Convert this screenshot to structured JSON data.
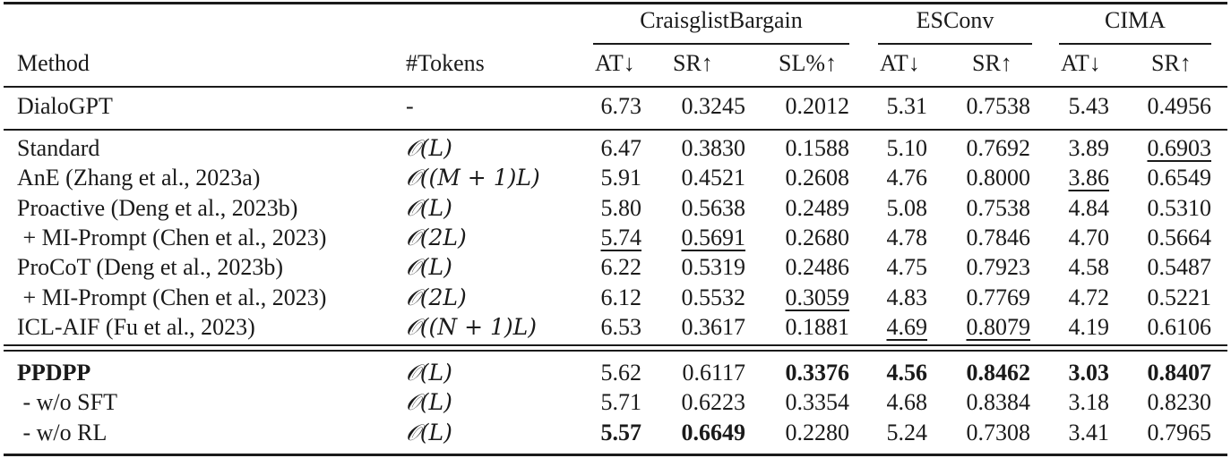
{
  "table": {
    "group_headers": [
      {
        "label": "CraisglistBargain",
        "span": [
          "AT↓",
          "SR↑",
          "SL%↑"
        ]
      },
      {
        "label": "ESConv",
        "span": [
          "AT↓",
          "SR↑"
        ]
      },
      {
        "label": "CIMA",
        "span": [
          "AT↓",
          "SR↑"
        ]
      }
    ],
    "columns": [
      "Method",
      "#Tokens",
      "AT↓",
      "SR↑",
      "SL%↑",
      "AT↓",
      "SR↑",
      "AT↓",
      "SR↑"
    ],
    "sections": [
      {
        "rows": [
          {
            "method": "DialoGPT",
            "tokens": "-",
            "values": [
              "6.73",
              "0.3245",
              "0.2012",
              "5.31",
              "0.7538",
              "5.43",
              "0.4956"
            ],
            "bold": [],
            "underline": []
          }
        ]
      },
      {
        "rows": [
          {
            "method": "Standard",
            "tokens": "𝒪(L)",
            "values": [
              "6.47",
              "0.3830",
              "0.1588",
              "5.10",
              "0.7692",
              "3.89",
              "0.6903"
            ],
            "bold": [],
            "underline": [
              6
            ]
          },
          {
            "method": "AnE (Zhang et al., 2023a)",
            "tokens": "𝒪((M + 1)L)",
            "values": [
              "5.91",
              "0.4521",
              "0.2608",
              "4.76",
              "0.8000",
              "3.86",
              "0.6549"
            ],
            "bold": [],
            "underline": [
              5
            ]
          },
          {
            "method": "Proactive (Deng et al., 2023b)",
            "tokens": "𝒪(L)",
            "values": [
              "5.80",
              "0.5638",
              "0.2489",
              "5.08",
              "0.7538",
              "4.84",
              "0.5310"
            ],
            "bold": [],
            "underline": []
          },
          {
            "method": " + MI-Prompt (Chen et al., 2023)",
            "tokens": "𝒪(2L)",
            "values": [
              "5.74",
              "0.5691",
              "0.2680",
              "4.78",
              "0.7846",
              "4.70",
              "0.5664"
            ],
            "bold": [],
            "underline": [
              0,
              1
            ]
          },
          {
            "method": "ProCoT (Deng et al., 2023b)",
            "tokens": "𝒪(L)",
            "values": [
              "6.22",
              "0.5319",
              "0.2486",
              "4.75",
              "0.7923",
              "4.58",
              "0.5487"
            ],
            "bold": [],
            "underline": []
          },
          {
            "method": " + MI-Prompt (Chen et al., 2023)",
            "tokens": "𝒪(2L)",
            "values": [
              "6.12",
              "0.5532",
              "0.3059",
              "4.83",
              "0.7769",
              "4.72",
              "0.5221"
            ],
            "bold": [],
            "underline": [
              2
            ]
          },
          {
            "method": "ICL-AIF (Fu et al., 2023)",
            "tokens": "𝒪((N + 1)L)",
            "values": [
              "6.53",
              "0.3617",
              "0.1881",
              "4.69",
              "0.8079",
              "4.19",
              "0.6106"
            ],
            "bold": [],
            "underline": [
              3,
              4
            ]
          }
        ]
      },
      {
        "rows": [
          {
            "method": "PPDPP",
            "method_bold": true,
            "tokens": "𝒪(L)",
            "values": [
              "5.62",
              "0.6117",
              "0.3376",
              "4.56",
              "0.8462",
              "3.03",
              "0.8407"
            ],
            "bold": [
              2,
              3,
              4,
              5,
              6
            ],
            "underline": []
          },
          {
            "method": " - w/o SFT",
            "tokens": "𝒪(L)",
            "values": [
              "5.71",
              "0.6223",
              "0.3354",
              "4.68",
              "0.8384",
              "3.18",
              "0.8230"
            ],
            "bold": [],
            "underline": []
          },
          {
            "method": " - w/o RL",
            "tokens": "𝒪(L)",
            "values": [
              "5.57",
              "0.6649",
              "0.2280",
              "5.24",
              "0.7308",
              "3.41",
              "0.7965"
            ],
            "bold": [
              0,
              1
            ],
            "underline": []
          }
        ]
      }
    ]
  }
}
